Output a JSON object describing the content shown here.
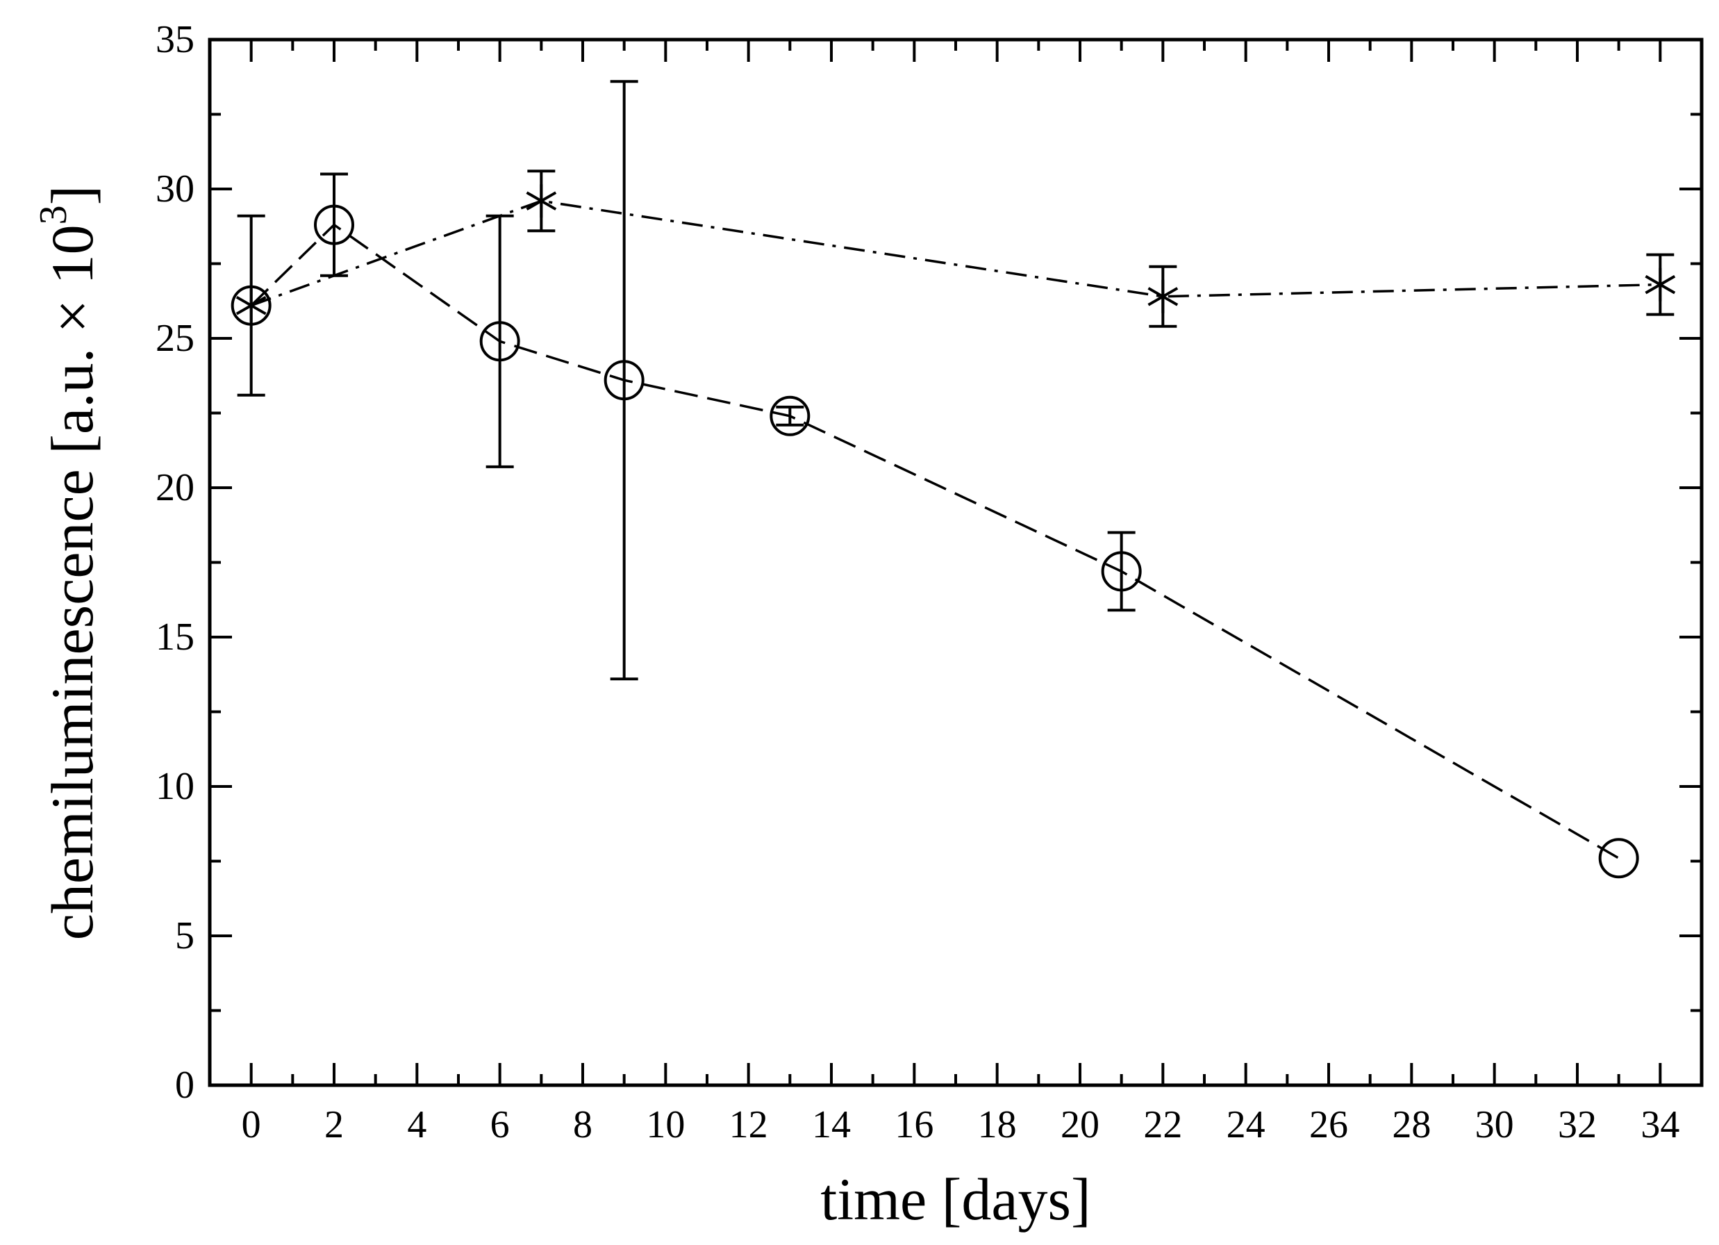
{
  "chart_data": {
    "type": "line",
    "title": "",
    "xlabel": "time [days]",
    "ylabel_main": "chemiluminescence [a.u. × 10",
    "ylabel_exponent": "3",
    "ylabel_close": "]",
    "xlim": [
      -1,
      35
    ],
    "ylim": [
      0,
      35
    ],
    "x_ticks": [
      0,
      2,
      4,
      6,
      8,
      10,
      12,
      14,
      16,
      18,
      20,
      22,
      24,
      26,
      28,
      30,
      32,
      34
    ],
    "x_tick_labels": [
      "0",
      "2",
      "4",
      "6",
      "8",
      "10",
      "12",
      "14",
      "16",
      "18",
      "20",
      "22",
      "24",
      "26",
      "28",
      "30",
      "32",
      "34"
    ],
    "y_ticks": [
      0,
      5,
      10,
      15,
      20,
      25,
      30,
      35
    ],
    "y_tick_labels": [
      "0",
      "5",
      "10",
      "15",
      "20",
      "25",
      "30",
      "35"
    ],
    "grid": false,
    "series": [
      {
        "name": "circles",
        "marker": "circle",
        "line_style": "dashed",
        "x": [
          0,
          2,
          6,
          9,
          13,
          21,
          33
        ],
        "y": [
          26.1,
          28.8,
          24.9,
          23.6,
          22.4,
          17.2,
          7.6
        ],
        "err": [
          3.0,
          1.7,
          4.2,
          10.0,
          0.3,
          1.3,
          0
        ]
      },
      {
        "name": "stars",
        "marker": "star",
        "line_style": "dash-dot",
        "x": [
          0,
          7,
          22,
          34
        ],
        "y": [
          26.1,
          29.6,
          26.4,
          26.8
        ],
        "err": [
          0,
          1.0,
          1.0,
          1.0
        ]
      }
    ]
  }
}
